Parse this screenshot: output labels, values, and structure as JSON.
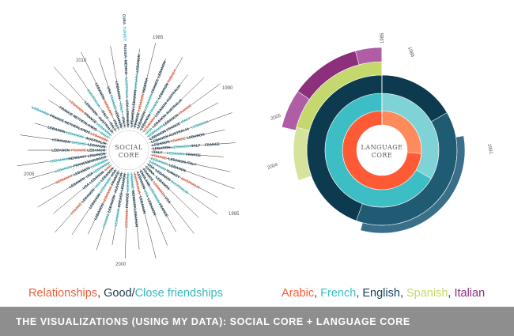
{
  "colors": {
    "relationship": "#e8613c",
    "good": "#1b3a4b",
    "close": "#36b8c0",
    "arabic": "#ff5a36",
    "french": "#3dbdc4",
    "english": "#14435a",
    "spanish": "#c5d86d",
    "italian": "#8c2f7c",
    "arabic_light": "#ff8a5c",
    "french_light": "#7fd3d6",
    "english_mid": "#1f5b73",
    "english_dark": "#0d3a4e",
    "english_band": "#3a6f8a",
    "spanish_light": "#d6e39d",
    "italian_light": "#b05da6"
  },
  "social": {
    "core_lines": [
      "SOCIAL",
      "CORE"
    ],
    "years": [
      "1985",
      "1990",
      "1995",
      "2000",
      "2005",
      "2010"
    ],
    "spokes": [
      [
        "LEBANON",
        "USA",
        "AUSTRALIA",
        "MEXICO",
        "RUSSIA",
        "TURKEY",
        "CUBA"
      ],
      [
        "LEBANON",
        "LEBANON",
        "CANADA",
        "LEBANON"
      ],
      [
        "FRANCE",
        "LEBANON",
        "NIGERIA"
      ],
      [
        "LEBANON",
        "LEBANON",
        "FRANCE",
        "LEBANON"
      ],
      [
        "LEBANON",
        "FRANCE",
        "LEBANON",
        "TURKEY"
      ],
      [
        "LEBANON",
        "LEBANON",
        "AUSTRALIA"
      ],
      [
        "USA",
        "LEBANON",
        "AUSTRALIA"
      ],
      [
        "LEBANON",
        "LEBANON",
        "FRANCE"
      ],
      [
        "LEBANON",
        "FRANCE",
        "ITALY"
      ],
      [
        "LEBANON",
        "AUSTRALIA",
        "LEBANON"
      ],
      [
        "LEBANON",
        "FRANCE",
        "LEBANON"
      ],
      [
        "LEBANON",
        "LEBANON",
        "ITALY",
        "FRANCE"
      ],
      [
        "ITALY",
        "LEBANON",
        "FRANCE"
      ],
      [
        "FRANCE",
        "LEBANON",
        "ITALY"
      ],
      [
        "LEBANON",
        "LEBANON"
      ],
      [
        "LEBANON",
        "TURKEY",
        "AUSTRALIA"
      ],
      [
        "USA",
        "LEBANON",
        "AUSTRALIA"
      ],
      [
        "CHINA",
        "LEBANON"
      ],
      [
        "FRANCE",
        "LEBANON",
        "USA"
      ],
      [
        "ENGLAND",
        "LEBANON",
        "FRANCE"
      ],
      [
        "LEBANON",
        "USA",
        "LEBANON"
      ],
      [
        "AUSTRALIA",
        "LEBANON"
      ],
      [
        "FRANCE",
        "DENMARK",
        "LEBANON"
      ],
      [
        "LEBANON",
        "FRANCE",
        "LEBANON"
      ],
      [
        "LEBANON",
        "GREECE",
        "LEBANON"
      ],
      [
        "AUSTRALIA",
        "LEBANON",
        "FRANCE"
      ],
      [
        "FRANCE",
        "LEBANON",
        "LEBANON"
      ],
      [
        "USA",
        "LEBANON",
        "LEBANON"
      ],
      [
        "LEBANON",
        "USA",
        "LEBANON",
        "FRANCE"
      ],
      [
        "UAE",
        "LEBANON",
        "USA"
      ],
      [
        "LEBANON",
        "USA",
        "LEBANON"
      ],
      [
        "LEBANON",
        "LEBANON",
        "GERMANY"
      ],
      [
        "MOROCCO",
        "FRANCE",
        "LEBANON"
      ],
      [
        "LEBANON",
        "GERMANY",
        "LEBANON"
      ],
      [
        "LEBANON",
        "FRANCE",
        "LEBANON"
      ],
      [
        "LEBANON",
        "GREECE",
        "LEBANON"
      ],
      [
        "AUSTRALIA",
        "LEBANON",
        "LEBANON"
      ],
      [
        "LEBANON",
        "NETHERLANDS",
        "FRANCE",
        "LEBANON"
      ],
      [
        "ITALY",
        "NETHERLANDS",
        "FRANCE"
      ],
      [
        "LEBANON",
        "FRANCE",
        "LEBANON"
      ],
      [
        "AUSTRALIA",
        "LEBANON"
      ],
      [
        "ITALY",
        "ITALY",
        "AUSTRALIA"
      ],
      [
        "ITALY",
        "HUNGARY",
        "LEBANON"
      ],
      [
        "LEBANON",
        "FRANCE",
        "USA"
      ],
      [
        "ITALY",
        "ITALY",
        "LEBANON"
      ]
    ]
  },
  "language": {
    "core_lines": [
      "LANGUAGE",
      "CORE"
    ],
    "years": [
      "1985",
      "1986",
      "1991",
      "2004",
      "2005"
    ]
  },
  "legend": {
    "left": {
      "relationships": "Relationships",
      "sep1": ", ",
      "good": "Good",
      "slash": "/",
      "close": "Close friendships"
    },
    "right": {
      "arabic": "Arabic",
      "sep1": ", ",
      "french": "French",
      "sep2": ", ",
      "english": "English",
      "sep3": ", ",
      "spanish": "Spanish",
      "sep4": ", ",
      "italian": "Italian"
    }
  },
  "footer": {
    "title": "THE VISUALIZATIONS (USING MY DATA): SOCIAL CORE + LANGUAGE CORE"
  }
}
